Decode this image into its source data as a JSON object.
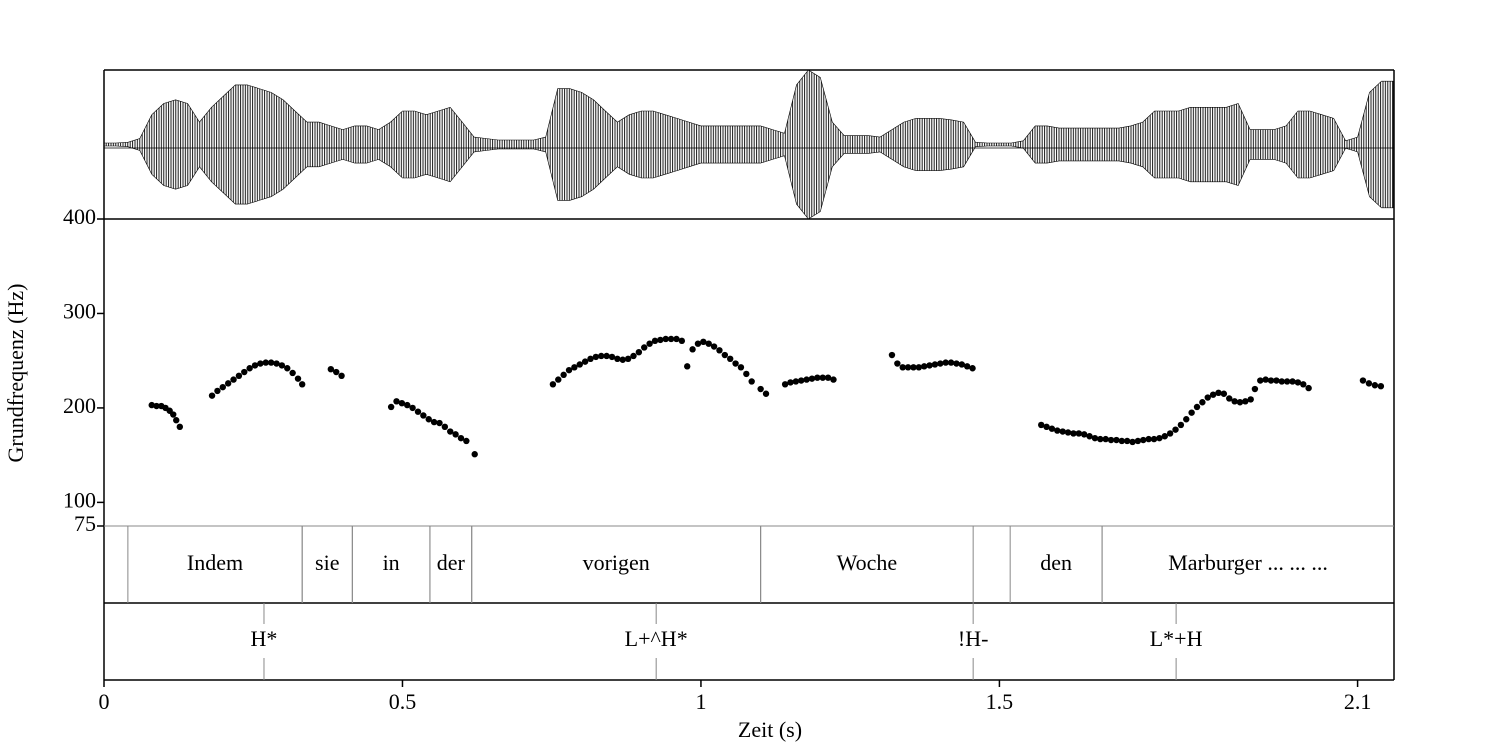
{
  "chart_data": {
    "type": "pitch",
    "x_label": "Zeit (s)",
    "y_label": "Grundfrequenz (Hz)",
    "xlim": [
      0,
      2.161
    ],
    "xticks": [
      0,
      0.5,
      1,
      1.5,
      2.1
    ],
    "ylim": [
      75,
      400
    ],
    "yticks": [
      75,
      100,
      200,
      300,
      400
    ],
    "waveform": {
      "ylim": [
        -1,
        1
      ],
      "x": [
        0,
        0.02,
        0.04,
        0.06,
        0.08,
        0.1,
        0.12,
        0.14,
        0.16,
        0.18,
        0.2,
        0.22,
        0.24,
        0.26,
        0.28,
        0.3,
        0.32,
        0.34,
        0.36,
        0.38,
        0.4,
        0.42,
        0.44,
        0.46,
        0.48,
        0.5,
        0.52,
        0.54,
        0.56,
        0.58,
        0.6,
        0.62,
        0.64,
        0.66,
        0.68,
        0.7,
        0.72,
        0.74,
        0.76,
        0.78,
        0.8,
        0.82,
        0.84,
        0.86,
        0.88,
        0.9,
        0.92,
        0.94,
        0.96,
        0.98,
        1,
        1.02,
        1.04,
        1.06,
        1.08,
        1.1,
        1.12,
        1.14,
        1.16,
        1.18,
        1.2,
        1.22,
        1.24,
        1.26,
        1.28,
        1.3,
        1.32,
        1.34,
        1.36,
        1.38,
        1.4,
        1.42,
        1.44,
        1.46,
        1.48,
        1.5,
        1.52,
        1.54,
        1.56,
        1.58,
        1.6,
        1.62,
        1.64,
        1.66,
        1.68,
        1.7,
        1.72,
        1.74,
        1.76,
        1.78,
        1.8,
        1.82,
        1.84,
        1.86,
        1.88,
        1.9,
        1.92,
        1.94,
        1.96,
        1.98,
        2,
        2.02,
        2.04,
        2.06,
        2.08,
        2.1,
        2.12,
        2.14,
        2.16
      ],
      "values": [
        0.02,
        0.02,
        0.03,
        0.08,
        0.4,
        0.55,
        0.6,
        0.55,
        0.3,
        0.5,
        0.65,
        0.8,
        0.8,
        0.75,
        0.7,
        0.6,
        0.45,
        0.3,
        0.3,
        0.25,
        0.2,
        0.25,
        0.25,
        0.2,
        0.3,
        0.45,
        0.45,
        0.4,
        0.45,
        0.5,
        0.3,
        0.1,
        0.08,
        0.06,
        0.06,
        0.06,
        0.06,
        0.1,
        0.75,
        0.75,
        0.7,
        0.6,
        0.45,
        0.3,
        0.4,
        0.45,
        0.45,
        0.4,
        0.35,
        0.3,
        0.25,
        0.25,
        0.25,
        0.25,
        0.25,
        0.25,
        0.2,
        0.15,
        0.8,
        1.0,
        0.9,
        0.3,
        0.12,
        0.12,
        0.12,
        0.1,
        0.2,
        0.3,
        0.35,
        0.35,
        0.35,
        0.33,
        0.3,
        0.03,
        0.02,
        0.02,
        0.02,
        0.05,
        0.25,
        0.25,
        0.22,
        0.22,
        0.22,
        0.22,
        0.22,
        0.22,
        0.25,
        0.3,
        0.45,
        0.45,
        0.45,
        0.5,
        0.5,
        0.5,
        0.5,
        0.55,
        0.2,
        0.2,
        0.2,
        0.25,
        0.45,
        0.45,
        0.4,
        0.35,
        0.05,
        0.1,
        0.7,
        0.85,
        0.85
      ]
    },
    "pitch": {
      "x": [
        0.08,
        0.088,
        0.096,
        0.103,
        0.11,
        0.116,
        0.121,
        0.127,
        0.181,
        0.19,
        0.199,
        0.208,
        0.217,
        0.226,
        0.235,
        0.244,
        0.253,
        0.262,
        0.271,
        0.28,
        0.289,
        0.298,
        0.307,
        0.316,
        0.325,
        0.332,
        0.38,
        0.389,
        0.398,
        0.481,
        0.49,
        0.499,
        0.508,
        0.517,
        0.526,
        0.535,
        0.544,
        0.553,
        0.562,
        0.571,
        0.58,
        0.589,
        0.598,
        0.607,
        0.621,
        0.752,
        0.761,
        0.77,
        0.779,
        0.788,
        0.797,
        0.806,
        0.815,
        0.824,
        0.833,
        0.842,
        0.851,
        0.86,
        0.869,
        0.878,
        0.887,
        0.896,
        0.905,
        0.914,
        0.923,
        0.932,
        0.941,
        0.95,
        0.959,
        0.968,
        0.977,
        0.986,
        0.995,
        1.004,
        1.013,
        1.022,
        1.031,
        1.04,
        1.049,
        1.058,
        1.067,
        1.076,
        1.085,
        1.1,
        1.109,
        1.141,
        1.15,
        1.159,
        1.168,
        1.177,
        1.186,
        1.195,
        1.204,
        1.213,
        1.222,
        1.32,
        1.329,
        1.338,
        1.347,
        1.356,
        1.365,
        1.374,
        1.383,
        1.392,
        1.401,
        1.41,
        1.419,
        1.428,
        1.437,
        1.446,
        1.455,
        1.57,
        1.579,
        1.588,
        1.597,
        1.606,
        1.615,
        1.624,
        1.633,
        1.642,
        1.651,
        1.66,
        1.669,
        1.678,
        1.687,
        1.696,
        1.705,
        1.714,
        1.723,
        1.732,
        1.741,
        1.75,
        1.759,
        1.768,
        1.777,
        1.786,
        1.795,
        1.804,
        1.813,
        1.822,
        1.831,
        1.84,
        1.849,
        1.858,
        1.867,
        1.876,
        1.885,
        1.894,
        1.903,
        1.912,
        1.921,
        1.928,
        1.937,
        1.946,
        1.955,
        1.964,
        1.973,
        1.982,
        1.991,
        2.0,
        2.009,
        2.018,
        2.109,
        2.119,
        2.129,
        2.139
      ],
      "values": [
        203,
        202,
        202,
        200,
        197,
        193,
        187,
        180,
        213,
        218,
        222,
        226,
        230,
        234,
        238,
        242,
        245,
        247,
        248,
        248,
        247,
        245,
        242,
        237,
        231,
        225,
        241,
        238,
        234,
        201,
        207,
        205,
        203,
        200,
        196,
        192,
        188,
        185,
        184,
        180,
        175,
        172,
        168,
        165,
        151,
        225,
        230,
        235,
        240,
        243,
        246,
        249,
        252,
        254,
        255,
        255,
        254,
        252,
        251,
        252,
        255,
        259,
        264,
        268,
        271,
        272,
        273,
        273,
        273,
        271,
        244,
        262,
        268,
        270,
        268,
        265,
        261,
        256,
        252,
        247,
        243,
        236,
        228,
        220,
        215,
        225,
        227,
        228,
        229,
        230,
        231,
        232,
        232,
        232,
        230,
        256,
        247,
        243,
        243,
        243,
        243,
        244,
        245,
        246,
        247,
        248,
        248,
        247,
        246,
        244,
        242,
        182,
        180,
        178,
        176,
        175,
        174,
        173,
        173,
        172,
        170,
        168,
        167,
        167,
        166,
        166,
        165,
        165,
        164,
        165,
        166,
        167,
        167,
        168,
        170,
        173,
        177,
        182,
        188,
        195,
        201,
        206,
        211,
        214,
        216,
        215,
        210,
        207,
        206,
        207,
        209,
        220,
        229,
        230,
        229,
        229,
        228,
        228,
        228,
        227,
        225,
        221,
        229,
        226,
        224,
        223
      ]
    },
    "tiers": [
      {
        "intervals": [
          {
            "text": "Indem",
            "start": 0.04,
            "end": 0.332
          },
          {
            "text": "sie",
            "start": 0.332,
            "end": 0.416
          },
          {
            "text": "in",
            "start": 0.416,
            "end": 0.546
          },
          {
            "text": "der",
            "start": 0.546,
            "end": 0.616
          },
          {
            "text": "vorigen",
            "start": 0.616,
            "end": 1.1
          },
          {
            "text": "Woche",
            "start": 1.1,
            "end": 1.456
          },
          {
            "text": "den",
            "start": 1.518,
            "end": 1.672
          },
          {
            "text": "Marburger ... ... ...",
            "start": 1.672,
            "end": 2.161
          }
        ]
      },
      {
        "points": [
          {
            "text": "H*",
            "time": 0.268
          },
          {
            "text": "L+^H*",
            "time": 0.925
          },
          {
            "text": "!H-",
            "time": 1.456
          },
          {
            "text": "L*+H",
            "time": 1.796
          }
        ]
      }
    ]
  }
}
